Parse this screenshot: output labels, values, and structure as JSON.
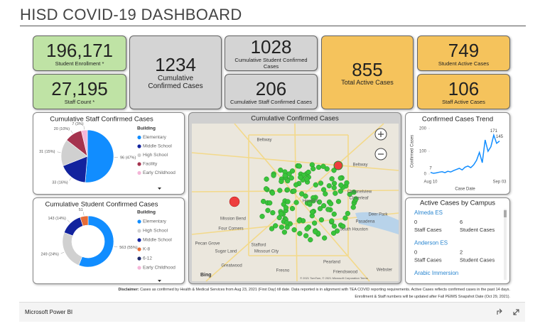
{
  "header": {
    "title": "HISD COVID-19 DASHBOARD"
  },
  "kpis": [
    {
      "value": "196,171",
      "label": "Student Enrollment *"
    },
    {
      "value": "27,195",
      "label": "Staff Count *"
    },
    {
      "value": "1234",
      "label": "Cumulative Confirmed Cases"
    },
    {
      "value": "1028",
      "label": "Cumulative Student Confirmed Cases"
    },
    {
      "value": "206",
      "label": "Cumulative Staff Confirmed Cases"
    },
    {
      "value": "855",
      "label": "Total Active Cases"
    },
    {
      "value": "749",
      "label": "Student Active Cases"
    },
    {
      "value": "106",
      "label": "Staff Active Cases"
    }
  ],
  "chart_data": [
    {
      "type": "pie",
      "title": "Cumulative Staff Confirmed Cases",
      "legend_title": "Building",
      "categories": [
        "Elementary",
        "Middle School",
        "High School",
        "Facility",
        "Early Childhood"
      ],
      "values": [
        96,
        33,
        31,
        20,
        7
      ],
      "value_labels": [
        "96 (47%)",
        "33 (16%)",
        "31 (15%)",
        "20 (10%)",
        "7 (3%)"
      ],
      "colors": [
        "#118dff",
        "#12239e",
        "#d0d0d0",
        "#a5334e",
        "#f4b6d8"
      ]
    },
    {
      "type": "donut",
      "title": "Cumulative Student Confirmed Cases",
      "legend_title": "Building",
      "categories": [
        "Elementary",
        "High School",
        "Middle School",
        "K-8",
        "6-12",
        "Early Childhood"
      ],
      "values": [
        563,
        249,
        143,
        51,
        null,
        null
      ],
      "value_labels": [
        "563 (55%)",
        "249 (24%)",
        "143 (14%)",
        "51",
        null,
        null
      ],
      "colors": [
        "#118dff",
        "#d0d0d0",
        "#12239e",
        "#e66c37",
        "#1f2b6b",
        "#f4b6d8"
      ]
    },
    {
      "type": "line",
      "title": "Confirmed Cases Trend",
      "x_label": "Case Date",
      "y_label": "Confirmed Cases",
      "categories": [
        "Aug 10",
        null,
        null,
        null,
        null,
        null,
        null,
        null,
        null,
        null,
        null,
        null,
        null,
        null,
        null,
        null,
        null,
        null,
        null,
        null,
        null,
        null,
        null,
        null,
        "Sep 03"
      ],
      "values": [
        7,
        3,
        5,
        8,
        10,
        6,
        12,
        9,
        15,
        20,
        25,
        18,
        30,
        35,
        28,
        40,
        60,
        95,
        50,
        150,
        100,
        120,
        171,
        135,
        145
      ],
      "value_labels": [
        "7",
        null,
        null,
        null,
        null,
        null,
        null,
        null,
        null,
        null,
        null,
        null,
        null,
        null,
        null,
        null,
        null,
        null,
        null,
        null,
        null,
        null,
        "171",
        null,
        "145"
      ],
      "color": "#118dff",
      "ylim": [
        0,
        200
      ],
      "yticks": [
        0,
        100,
        200
      ]
    }
  ],
  "map": {
    "title": "Cumulative Confirmed Cases",
    "places": [
      "Beltway",
      "Beltway",
      "Channelview",
      "Cloverleaf",
      "Houston",
      "Mission Bend",
      "Four Corners",
      "Deer Park",
      "Pasadena",
      "South Houston",
      "Pecan Grove",
      "Sugar Land",
      "Stafford",
      "Missouri City",
      "Greatwood",
      "Fresno",
      "Pearland",
      "Friendswood",
      "Webster"
    ],
    "logo": "Bing",
    "attribution": "© 2021 TomTom, © 2021 Microsoft Corporation Terms"
  },
  "campus_list": {
    "title": "Active Cases by Campus",
    "campuses": [
      {
        "name": "Almeda ES",
        "staff_cases": "0",
        "student_cases": "6",
        "staff_label": "Staff Cases",
        "student_label": "Student Cases"
      },
      {
        "name": "Anderson ES",
        "staff_cases": "0",
        "student_cases": "2",
        "staff_label": "Staff Cases",
        "student_label": "Student Cases"
      },
      {
        "name": "Arabic Immersion"
      }
    ]
  },
  "disclaimer": {
    "label": "Disclaimer:",
    "line1": "Cases as confirmed by Health & Medical Services from Aug 23, 2021 (First Day) till date. Data reported is in alignment with TEA COVID reporting requirements. Active Cases reflects confirmed cases in the past 14 days.",
    "line2": "Enrollment & Staff numbers will be updated after Fall PEIMS Snapshot Date (Oct 29, 2021)."
  },
  "footer": {
    "brand": "Microsoft Power BI"
  }
}
